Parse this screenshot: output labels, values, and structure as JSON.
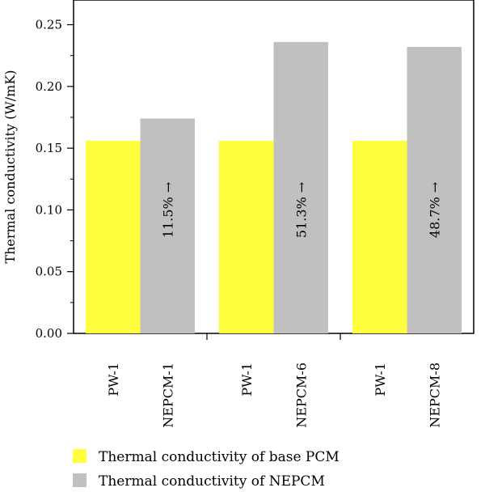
{
  "chart_data": {
    "type": "bar",
    "ylabel": "Thermal conductivity (W/mK)",
    "xlabel": "",
    "ylim": [
      0,
      0.27
    ],
    "yticks": [
      "0.00",
      "0.05",
      "0.10",
      "0.15",
      "0.20",
      "0.25"
    ],
    "ytick_values": [
      0,
      0.05,
      0.1,
      0.15,
      0.2,
      0.25
    ],
    "groups": [
      {
        "categories": [
          "PW-1",
          "NEPCM-1"
        ],
        "values": [
          0.156,
          0.174
        ],
        "annotation": "11.5% →"
      },
      {
        "categories": [
          "PW-1",
          "NEPCM-6"
        ],
        "values": [
          0.156,
          0.236
        ],
        "annotation": "51.3% →"
      },
      {
        "categories": [
          "PW-1",
          "NEPCM-8"
        ],
        "values": [
          0.156,
          0.232
        ],
        "annotation": "48.7% →"
      }
    ],
    "series": [
      {
        "name": "Thermal conductivity of base PCM",
        "color": "#ffff40"
      },
      {
        "name": "Thermal conductivity of NEPCM",
        "color": "#c0c0c0"
      }
    ],
    "legend": "bottom-left",
    "grid": false
  }
}
